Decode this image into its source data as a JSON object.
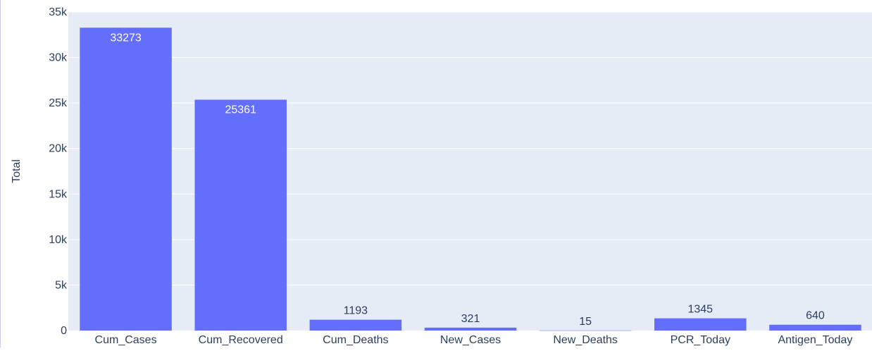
{
  "chart_data": {
    "type": "bar",
    "ylabel": "Total",
    "xlabel": "",
    "ylim": [
      0,
      35000
    ],
    "y_ticks": [
      0,
      5000,
      10000,
      15000,
      20000,
      25000,
      30000,
      35000
    ],
    "y_tick_labels": [
      "0",
      "5k",
      "10k",
      "15k",
      "20k",
      "25k",
      "30k",
      "35k"
    ],
    "categories": [
      "Cum_Cases",
      "Cum_Recovered",
      "Cum_Deaths",
      "New_Cases",
      "New_Deaths",
      "PCR_Today",
      "Antigen_Today"
    ],
    "values": [
      33273,
      25361,
      1193,
      321,
      15,
      1345,
      640
    ],
    "data_labels": [
      "33273",
      "25361",
      "1193",
      "321",
      "15",
      "1345",
      "640"
    ],
    "grid": true,
    "colors": {
      "bar": "#636efa",
      "plot_bg": "#e5ecf6",
      "grid": "#ffffff",
      "text": "#2a3f5f",
      "inside_label": "#ffffff"
    }
  }
}
